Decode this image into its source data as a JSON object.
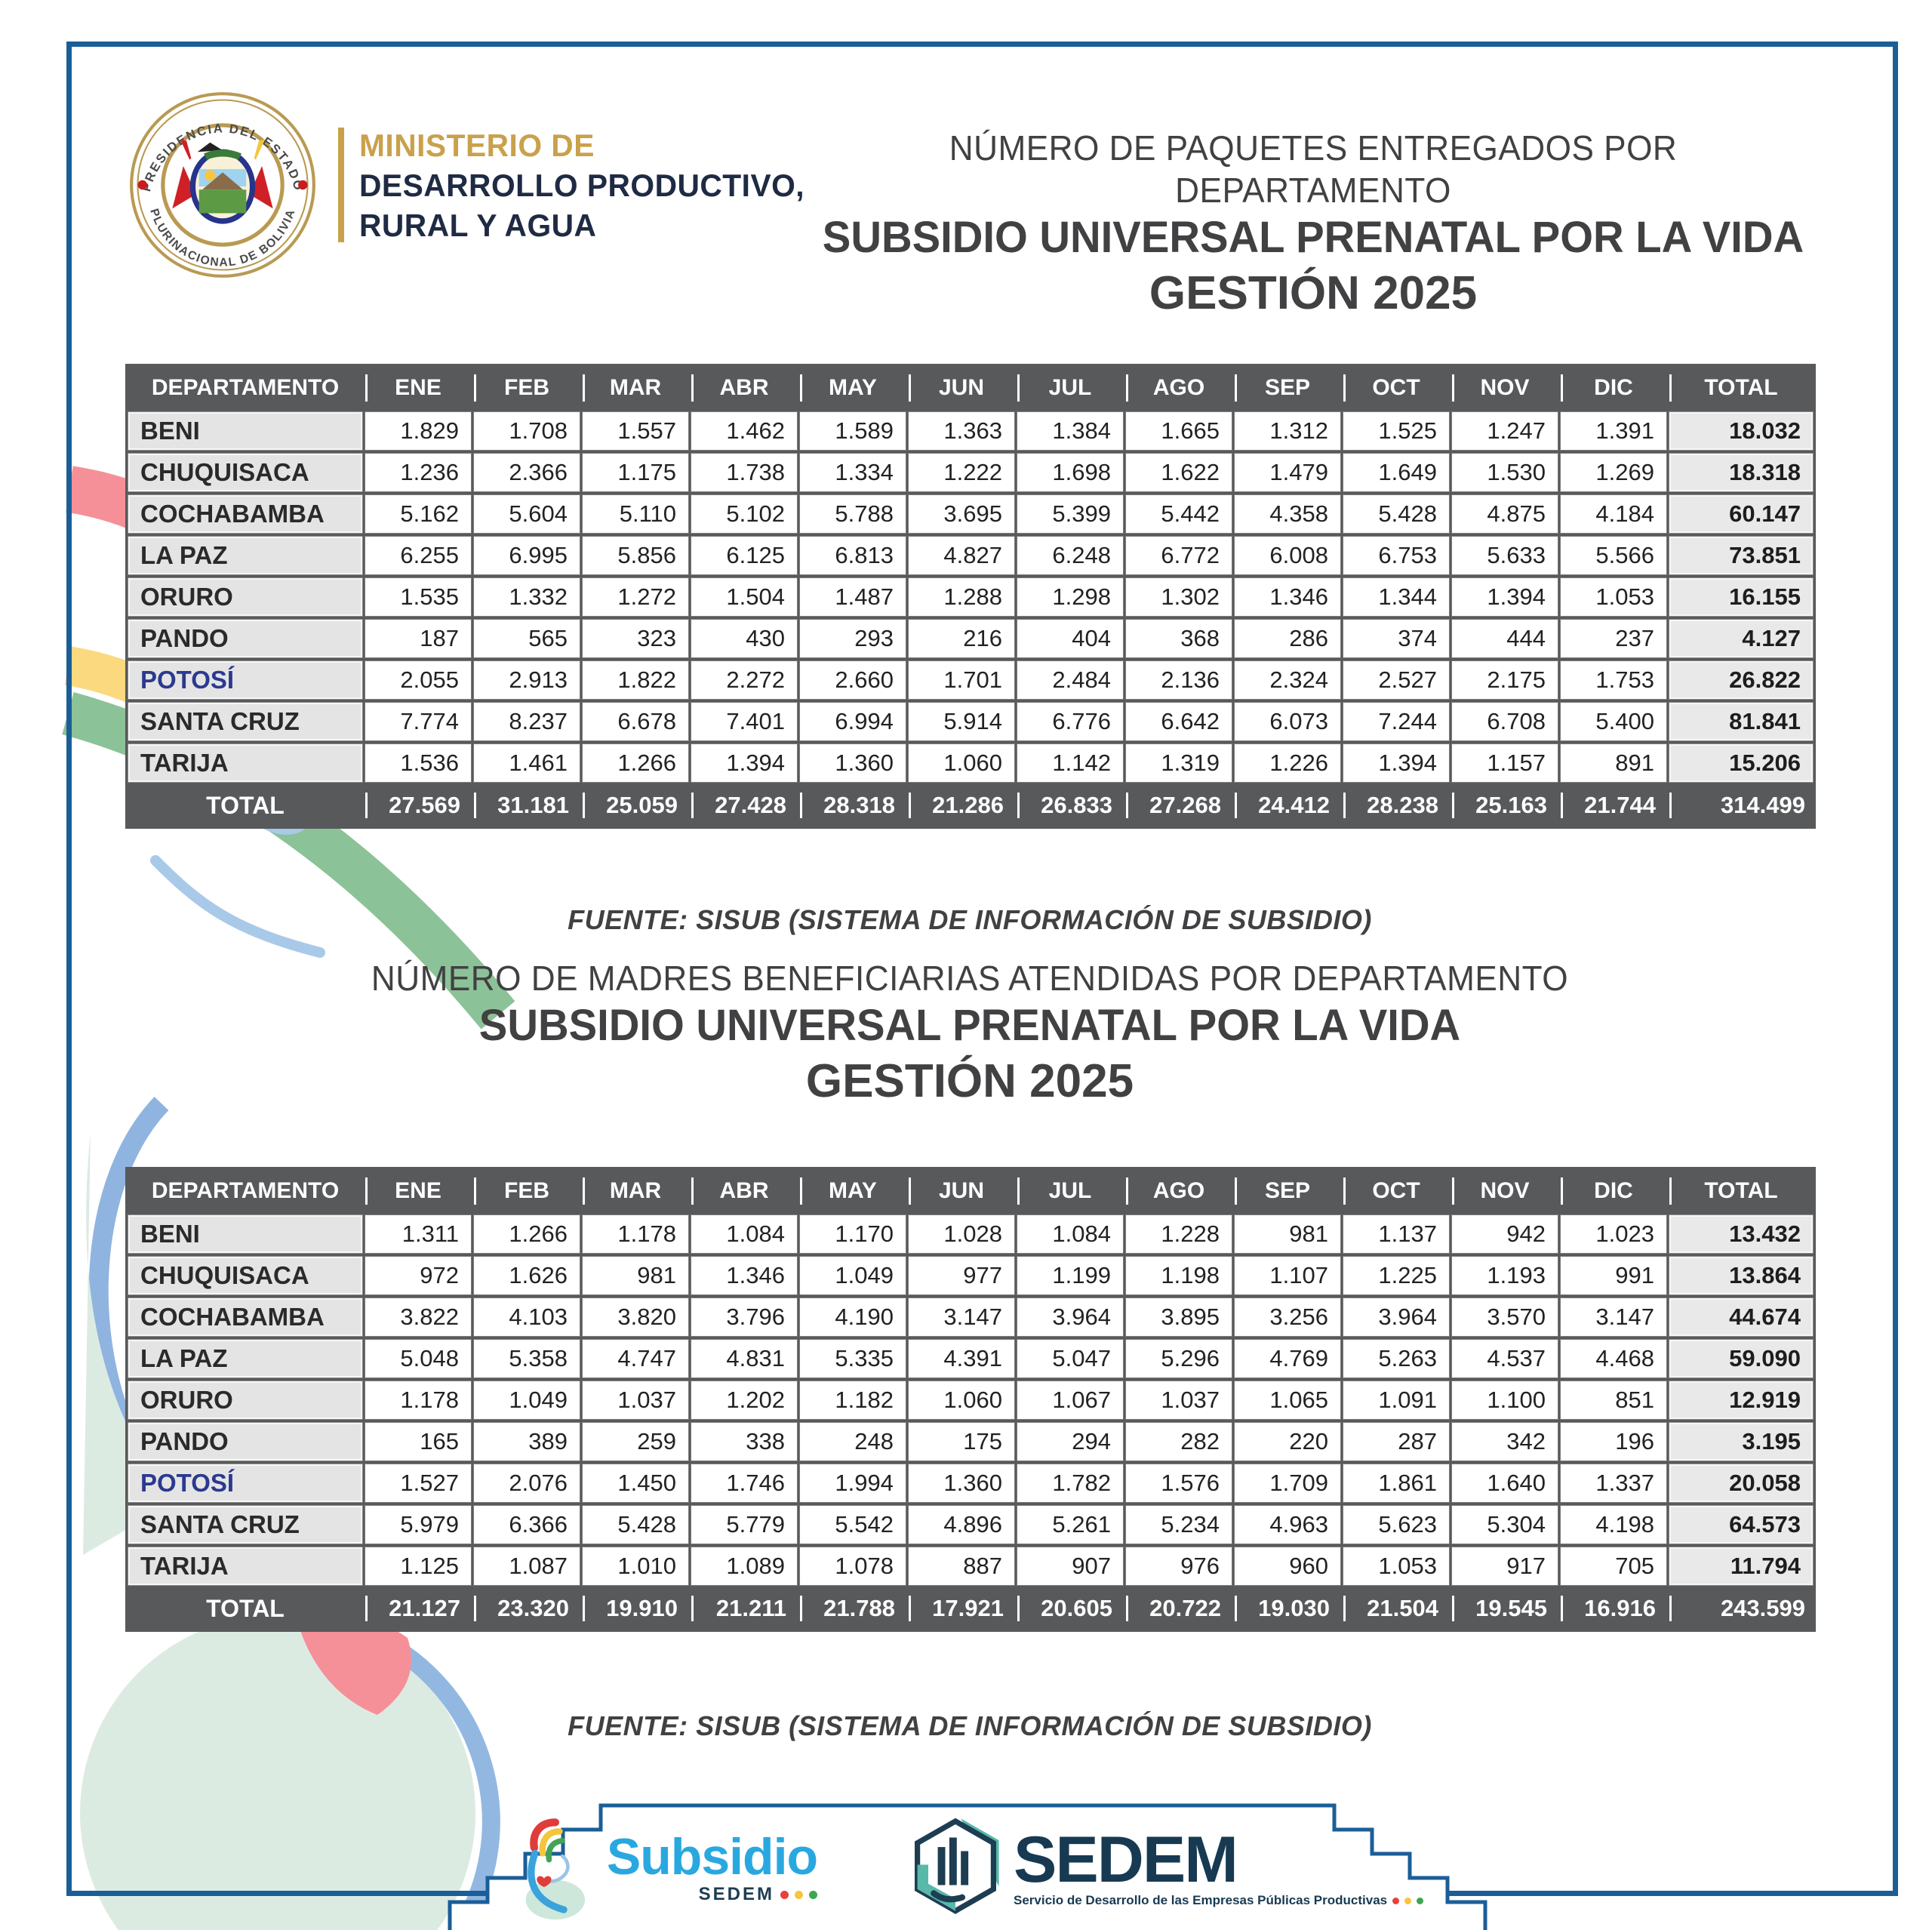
{
  "colors": {
    "frame_blue": "#1b5e97",
    "table_header_gray": "#58595b",
    "dept_cell_gray": "#e4e4e4",
    "potosi_highlight": "#2b3990",
    "gold": "#c9a14c",
    "ministry_navy": "#1f2a44",
    "subsidio_blue": "#29a8e0",
    "sedem_navy": "#173a52",
    "dot_red": "#e8413c",
    "dot_yellow": "#f5c63c",
    "dot_green": "#3da650"
  },
  "header": {
    "seal_top_text": "PRESIDENCIA DEL ESTADO",
    "seal_bottom_text": "PLURINACIONAL DE BOLIVIA",
    "ministry_line1": "MINISTERIO DE",
    "ministry_line2": "DESARROLLO PRODUCTIVO,",
    "ministry_line3": "RURAL Y AGUA"
  },
  "table1": {
    "title_line1": "NÚMERO DE PAQUETES ENTREGADOS POR DEPARTAMENTO",
    "title_line2": "SUBSIDIO UNIVERSAL PRENATAL POR LA VIDA",
    "title_line3": "GESTIÓN 2025",
    "columns": [
      "DEPARTAMENTO",
      "ENE",
      "FEB",
      "MAR",
      "ABR",
      "MAY",
      "JUN",
      "JUL",
      "AGO",
      "SEP",
      "OCT",
      "NOV",
      "DIC",
      "TOTAL"
    ],
    "rows": [
      {
        "name": "BENI",
        "values": [
          "1.829",
          "1.708",
          "1.557",
          "1.462",
          "1.589",
          "1.363",
          "1.384",
          "1.665",
          "1.312",
          "1.525",
          "1.247",
          "1.391"
        ],
        "total": "18.032"
      },
      {
        "name": "CHUQUISACA",
        "values": [
          "1.236",
          "2.366",
          "1.175",
          "1.738",
          "1.334",
          "1.222",
          "1.698",
          "1.622",
          "1.479",
          "1.649",
          "1.530",
          "1.269"
        ],
        "total": "18.318"
      },
      {
        "name": "COCHABAMBA",
        "values": [
          "5.162",
          "5.604",
          "5.110",
          "5.102",
          "5.788",
          "3.695",
          "5.399",
          "5.442",
          "4.358",
          "5.428",
          "4.875",
          "4.184"
        ],
        "total": "60.147"
      },
      {
        "name": "LA PAZ",
        "values": [
          "6.255",
          "6.995",
          "5.856",
          "6.125",
          "6.813",
          "4.827",
          "6.248",
          "6.772",
          "6.008",
          "6.753",
          "5.633",
          "5.566"
        ],
        "total": "73.851"
      },
      {
        "name": "ORURO",
        "values": [
          "1.535",
          "1.332",
          "1.272",
          "1.504",
          "1.487",
          "1.288",
          "1.298",
          "1.302",
          "1.346",
          "1.344",
          "1.394",
          "1.053"
        ],
        "total": "16.155"
      },
      {
        "name": "PANDO",
        "values": [
          "187",
          "565",
          "323",
          "430",
          "293",
          "216",
          "404",
          "368",
          "286",
          "374",
          "444",
          "237"
        ],
        "total": "4.127"
      },
      {
        "name": "POTOSÍ",
        "highlight": true,
        "values": [
          "2.055",
          "2.913",
          "1.822",
          "2.272",
          "2.660",
          "1.701",
          "2.484",
          "2.136",
          "2.324",
          "2.527",
          "2.175",
          "1.753"
        ],
        "total": "26.822"
      },
      {
        "name": "SANTA CRUZ",
        "values": [
          "7.774",
          "8.237",
          "6.678",
          "7.401",
          "6.994",
          "5.914",
          "6.776",
          "6.642",
          "6.073",
          "7.244",
          "6.708",
          "5.400"
        ],
        "total": "81.841"
      },
      {
        "name": "TARIJA",
        "values": [
          "1.536",
          "1.461",
          "1.266",
          "1.394",
          "1.360",
          "1.060",
          "1.142",
          "1.319",
          "1.226",
          "1.394",
          "1.157",
          "891"
        ],
        "total": "15.206"
      }
    ],
    "total_row": {
      "label": "TOTAL",
      "values": [
        "27.569",
        "31.181",
        "25.059",
        "27.428",
        "28.318",
        "21.286",
        "26.833",
        "27.268",
        "24.412",
        "28.238",
        "25.163",
        "21.744"
      ],
      "total": "314.499"
    },
    "source": "FUENTE: SISUB (SISTEMA DE INFORMACIÓN DE SUBSIDIO)"
  },
  "table2": {
    "title_line1": "NÚMERO DE MADRES BENEFICIARIAS ATENDIDAS POR DEPARTAMENTO",
    "title_line2": "SUBSIDIO UNIVERSAL PRENATAL POR LA VIDA",
    "title_line3": "GESTIÓN 2025",
    "columns": [
      "DEPARTAMENTO",
      "ENE",
      "FEB",
      "MAR",
      "ABR",
      "MAY",
      "JUN",
      "JUL",
      "AGO",
      "SEP",
      "OCT",
      "NOV",
      "DIC",
      "TOTAL"
    ],
    "rows": [
      {
        "name": "BENI",
        "values": [
          "1.311",
          "1.266",
          "1.178",
          "1.084",
          "1.170",
          "1.028",
          "1.084",
          "1.228",
          "981",
          "1.137",
          "942",
          "1.023"
        ],
        "total": "13.432"
      },
      {
        "name": "CHUQUISACA",
        "values": [
          "972",
          "1.626",
          "981",
          "1.346",
          "1.049",
          "977",
          "1.199",
          "1.198",
          "1.107",
          "1.225",
          "1.193",
          "991"
        ],
        "total": "13.864"
      },
      {
        "name": "COCHABAMBA",
        "values": [
          "3.822",
          "4.103",
          "3.820",
          "3.796",
          "4.190",
          "3.147",
          "3.964",
          "3.895",
          "3.256",
          "3.964",
          "3.570",
          "3.147"
        ],
        "total": "44.674"
      },
      {
        "name": "LA PAZ",
        "values": [
          "5.048",
          "5.358",
          "4.747",
          "4.831",
          "5.335",
          "4.391",
          "5.047",
          "5.296",
          "4.769",
          "5.263",
          "4.537",
          "4.468"
        ],
        "total": "59.090"
      },
      {
        "name": "ORURO",
        "values": [
          "1.178",
          "1.049",
          "1.037",
          "1.202",
          "1.182",
          "1.060",
          "1.067",
          "1.037",
          "1.065",
          "1.091",
          "1.100",
          "851"
        ],
        "total": "12.919"
      },
      {
        "name": "PANDO",
        "values": [
          "165",
          "389",
          "259",
          "338",
          "248",
          "175",
          "294",
          "282",
          "220",
          "287",
          "342",
          "196"
        ],
        "total": "3.195"
      },
      {
        "name": "POTOSÍ",
        "highlight": true,
        "values": [
          "1.527",
          "2.076",
          "1.450",
          "1.746",
          "1.994",
          "1.360",
          "1.782",
          "1.576",
          "1.709",
          "1.861",
          "1.640",
          "1.337"
        ],
        "total": "20.058"
      },
      {
        "name": "SANTA CRUZ",
        "values": [
          "5.979",
          "6.366",
          "5.428",
          "5.779",
          "5.542",
          "4.896",
          "5.261",
          "5.234",
          "4.963",
          "5.623",
          "5.304",
          "4.198"
        ],
        "total": "64.573"
      },
      {
        "name": "TARIJA",
        "values": [
          "1.125",
          "1.087",
          "1.010",
          "1.089",
          "1.078",
          "887",
          "907",
          "976",
          "960",
          "1.053",
          "917",
          "705"
        ],
        "total": "11.794"
      }
    ],
    "total_row": {
      "label": "TOTAL",
      "values": [
        "21.127",
        "23.320",
        "19.910",
        "21.211",
        "21.788",
        "17.921",
        "20.605",
        "20.722",
        "19.030",
        "21.504",
        "19.545",
        "16.916"
      ],
      "total": "243.599"
    },
    "source": "FUENTE: SISUB (SISTEMA DE INFORMACIÓN DE SUBSIDIO)"
  },
  "footer": {
    "subsidio_word": "Subsidio",
    "subsidio_sub": "SEDEM",
    "sedem_word": "SEDEM",
    "sedem_tagline": "Servicio de Desarrollo de las Empresas Públicas Productivas"
  }
}
